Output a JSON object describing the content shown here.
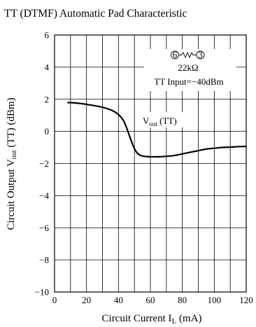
{
  "chart_data": {
    "type": "line",
    "title": "TT (DTMF) Automatic Pad Characteristic",
    "xlabel": {
      "main": "Circuit Current  I",
      "sub": "L",
      "unit": "  (mA)"
    },
    "ylabel": {
      "prefix": "Circuit Output  V",
      "sub": "out",
      "suffix": " (TT)  (dBm)"
    },
    "xlim": [
      0,
      120
    ],
    "ylim": [
      -10,
      6
    ],
    "x_ticks": [
      0,
      20,
      40,
      60,
      80,
      100,
      120
    ],
    "x_tick_labels": [
      "0",
      "20",
      "40",
      "60",
      "80",
      "100",
      "120"
    ],
    "x_grid": [
      0,
      10,
      20,
      30,
      40,
      50,
      60,
      70,
      80,
      90,
      100,
      110,
      120
    ],
    "y_ticks": [
      -10,
      -8,
      -6,
      -4,
      -2,
      0,
      2,
      4,
      6
    ],
    "y_tick_labels": [
      "−10",
      "−8",
      "−6",
      "−4",
      "−2",
      "0",
      "2",
      "4",
      "6"
    ],
    "grid": true,
    "series": [
      {
        "name": "Vout (TT)",
        "x": [
          8,
          15,
          22,
          30,
          36,
          40,
          43,
          45,
          47,
          49,
          51,
          53,
          56,
          60,
          65,
          70,
          75,
          80,
          85,
          90,
          95,
          100,
          105,
          110,
          115,
          120
        ],
        "y": [
          1.8,
          1.75,
          1.65,
          1.5,
          1.3,
          1.05,
          0.7,
          0.25,
          -0.3,
          -0.85,
          -1.25,
          -1.45,
          -1.55,
          -1.58,
          -1.58,
          -1.55,
          -1.5,
          -1.4,
          -1.3,
          -1.2,
          -1.1,
          -1.05,
          -1.0,
          -0.98,
          -0.95,
          -0.93
        ]
      }
    ],
    "annotations": {
      "series_label": {
        "prefix": "V",
        "sub": "out",
        "suffix": " (TT)"
      },
      "pin_a": "6",
      "pin_b": "3",
      "resistor_value": "22kΩ",
      "tt_input": "TT Input=−40dBm"
    }
  }
}
